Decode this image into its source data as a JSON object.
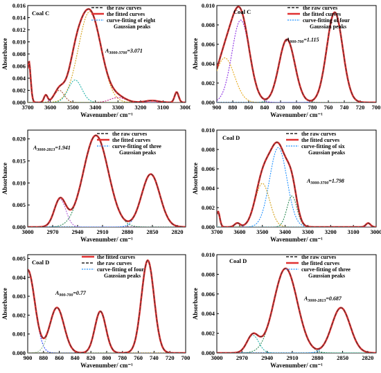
{
  "chart_data": [
    {
      "type": "line",
      "label": "Coal C",
      "xlabel": "Wavenumber/ cm⁻¹",
      "ylabel": "Absorbance",
      "xlim": [
        3700,
        3000
      ],
      "ylim": [
        0,
        0.016
      ],
      "xticks": [
        3700,
        3600,
        3500,
        3400,
        3300,
        3200,
        3100,
        3000
      ],
      "yticks": [
        0,
        0.002,
        0.004,
        0.006,
        0.008,
        0.01,
        0.012,
        0.014,
        0.016
      ],
      "ytick_labels": [
        "0.000",
        "0.002",
        "0.004",
        "0.006",
        "0.008",
        "0.010",
        "0.012",
        "0.014",
        "0.016"
      ],
      "legend": [
        "the raw curves",
        "the fitted curves",
        "curve-fitting of eight",
        "Gaussian peaks"
      ],
      "annotation": {
        "prefix": "A",
        "sub": "3000-3700",
        "value": "=3.071"
      },
      "peaks": [
        {
          "center": 3425,
          "height": 0.015,
          "sigma": 50,
          "color": "#d4a017"
        },
        {
          "center": 3490,
          "height": 0.0037,
          "sigma": 30,
          "color": "#20b2aa"
        },
        {
          "center": 3560,
          "height": 0.002,
          "sigma": 22,
          "color": "#a0522d"
        },
        {
          "center": 3620,
          "height": 0.0012,
          "sigma": 8,
          "color": "#8a2be2"
        },
        {
          "center": 3695,
          "height": 0.0068,
          "sigma": 8,
          "color": "#2e8b57"
        },
        {
          "center": 3040,
          "height": 0.0017,
          "sigma": 9,
          "color": "#1e90ff"
        },
        {
          "center": 3300,
          "height": 0.0008,
          "sigma": 35,
          "color": "#c71585"
        },
        {
          "center": 3150,
          "height": 0.0003,
          "sigma": 30,
          "color": "#808000"
        }
      ]
    },
    {
      "type": "line",
      "label": "Coal C",
      "xlabel": "Wavenumber/ cm⁻¹",
      "ylabel": "Absorbance",
      "xlim": [
        900,
        700
      ],
      "ylim": [
        0,
        0.01
      ],
      "xticks": [
        900,
        880,
        860,
        840,
        820,
        800,
        780,
        760,
        740,
        720,
        700
      ],
      "yticks": [
        0,
        0.002,
        0.004,
        0.006,
        0.008,
        0.01
      ],
      "ytick_labels": [
        "0.000",
        "0.002",
        "0.004",
        "0.006",
        "0.008",
        "0.010"
      ],
      "legend": [
        "the raw curves",
        "the fitted curves",
        "curve-fitting of four",
        "Gaussian peaks"
      ],
      "annotation": {
        "prefix": "A",
        "sub": "900-700",
        "value": "=1.115"
      },
      "peaks": [
        {
          "center": 890,
          "height": 0.0046,
          "sigma": 12,
          "color": "#e6a817"
        },
        {
          "center": 870,
          "height": 0.0085,
          "sigma": 11,
          "color": "#8a2be2"
        },
        {
          "center": 812,
          "height": 0.0065,
          "sigma": 10,
          "color": "#2e8b57"
        },
        {
          "center": 752,
          "height": 0.0093,
          "sigma": 10,
          "color": "#1e90ff"
        }
      ]
    },
    {
      "type": "line",
      "label": "",
      "xlabel": "Wavenumber/ cm⁻¹",
      "ylabel": "Absorbance",
      "xlim": [
        3000,
        2810
      ],
      "ylim": [
        0,
        0.022
      ],
      "xticks": [
        3000,
        2970,
        2940,
        2910,
        2880,
        2850,
        2820
      ],
      "yticks": [
        0,
        0.005,
        0.01,
        0.015,
        0.02
      ],
      "ytick_labels": [
        "0.000",
        "0.005",
        "0.010",
        "0.015",
        "0.020"
      ],
      "legend": [
        "the raw curves",
        "the fitted curves",
        "curve-fitting of three",
        "Gaussian peaks"
      ],
      "annotation": {
        "prefix": "A",
        "sub": "3000-2813",
        "value": "=1.941"
      },
      "peaks": [
        {
          "center": 2961,
          "height": 0.0063,
          "sigma": 7,
          "color": "#b05fd8"
        },
        {
          "center": 2918,
          "height": 0.0208,
          "sigma": 15,
          "color": "#2e8b57"
        },
        {
          "center": 2852,
          "height": 0.012,
          "sigma": 11,
          "color": "#1e90ff"
        }
      ]
    },
    {
      "type": "line",
      "label": "Coal D",
      "xlabel": "Wavenumber/ cm⁻¹",
      "ylabel": "Absorbance",
      "xlim": [
        3700,
        3000
      ],
      "ylim": [
        0,
        0.01
      ],
      "xticks": [
        3700,
        3600,
        3500,
        3400,
        3300,
        3200,
        3100,
        3000
      ],
      "yticks": [
        0,
        0.002,
        0.004,
        0.006,
        0.008,
        0.01
      ],
      "ytick_labels": [
        "0.000",
        "0.002",
        "0.004",
        "0.006",
        "0.008",
        "0.010"
      ],
      "legend": [
        "the raw curves",
        "the fitted curves",
        "curve-fitting of six",
        "Gaussian peaks"
      ],
      "annotation": {
        "prefix": "A",
        "sub": "3000-3700",
        "value": "=1.798"
      },
      "peaks": [
        {
          "center": 3430,
          "height": 0.0082,
          "sigma": 38,
          "color": "#1e90ff"
        },
        {
          "center": 3500,
          "height": 0.0045,
          "sigma": 32,
          "color": "#d4a017"
        },
        {
          "center": 3370,
          "height": 0.0032,
          "sigma": 22,
          "color": "#2e8b57"
        },
        {
          "center": 3610,
          "height": 0.0004,
          "sigma": 12,
          "color": "#8a2be2"
        },
        {
          "center": 3695,
          "height": 0.0016,
          "sigma": 8,
          "color": "#a0522d"
        },
        {
          "center": 3035,
          "height": 0.0004,
          "sigma": 10,
          "color": "#20b2aa"
        }
      ]
    },
    {
      "type": "line",
      "label": "Coal D",
      "xlabel": "Wavenumber/ cm⁻¹",
      "ylabel": "Absorbance",
      "xlim": [
        900,
        700
      ],
      "ylim": [
        0,
        0.0052
      ],
      "xticks": [
        900,
        880,
        860,
        840,
        820,
        800,
        780,
        760,
        740,
        720,
        700
      ],
      "yticks": [
        0,
        0.001,
        0.002,
        0.003,
        0.004,
        0.005
      ],
      "ytick_labels": [
        "0.000",
        "0.001",
        "0.002",
        "0.003",
        "0.004",
        "0.005"
      ],
      "legend": [
        "the fitted curves",
        "the raw curves",
        "curve-fitting of four",
        "Gaussian peaks"
      ],
      "annotation": {
        "prefix": "A",
        "sub": "900-700",
        "value": "=0.77"
      },
      "peaks": [
        {
          "center": 900,
          "height": 0.0044,
          "sigma": 9,
          "color": "#1e3cff"
        },
        {
          "center": 863,
          "height": 0.0024,
          "sigma": 9,
          "color": "#8fbc8f"
        },
        {
          "center": 808,
          "height": 0.0022,
          "sigma": 7,
          "color": "#b8860b"
        },
        {
          "center": 748,
          "height": 0.0049,
          "sigma": 8,
          "color": "#556b2f"
        }
      ]
    },
    {
      "type": "line",
      "label": "Coal D",
      "xlabel": "Wavenumber/ cm⁻¹",
      "ylabel": "Absorbance",
      "xlim": [
        3000,
        2810
      ],
      "ylim": [
        0,
        0.01
      ],
      "xticks": [
        3000,
        2970,
        2940,
        2910,
        2880,
        2850,
        2820
      ],
      "yticks": [
        0,
        0.002,
        0.004,
        0.006,
        0.008,
        0.01
      ],
      "ytick_labels": [
        "0.000",
        "0.002",
        "0.004",
        "0.006",
        "0.008",
        "0.010"
      ],
      "legend": [
        "the raw curves",
        "the fitted curves",
        "curve-fitting of three",
        "Gaussian peaks"
      ],
      "annotation": {
        "prefix": "A",
        "sub": "3000-2813",
        "value": "=0.687"
      },
      "peaks": [
        {
          "center": 2957,
          "height": 0.0018,
          "sigma": 7,
          "color": "#20b2aa"
        },
        {
          "center": 2918,
          "height": 0.0086,
          "sigma": 14,
          "color": "#2e8b57"
        },
        {
          "center": 2852,
          "height": 0.0046,
          "sigma": 11,
          "color": "#1e90ff"
        }
      ]
    }
  ],
  "colors": {
    "raw": "#333333",
    "fitted": "#e03030"
  }
}
